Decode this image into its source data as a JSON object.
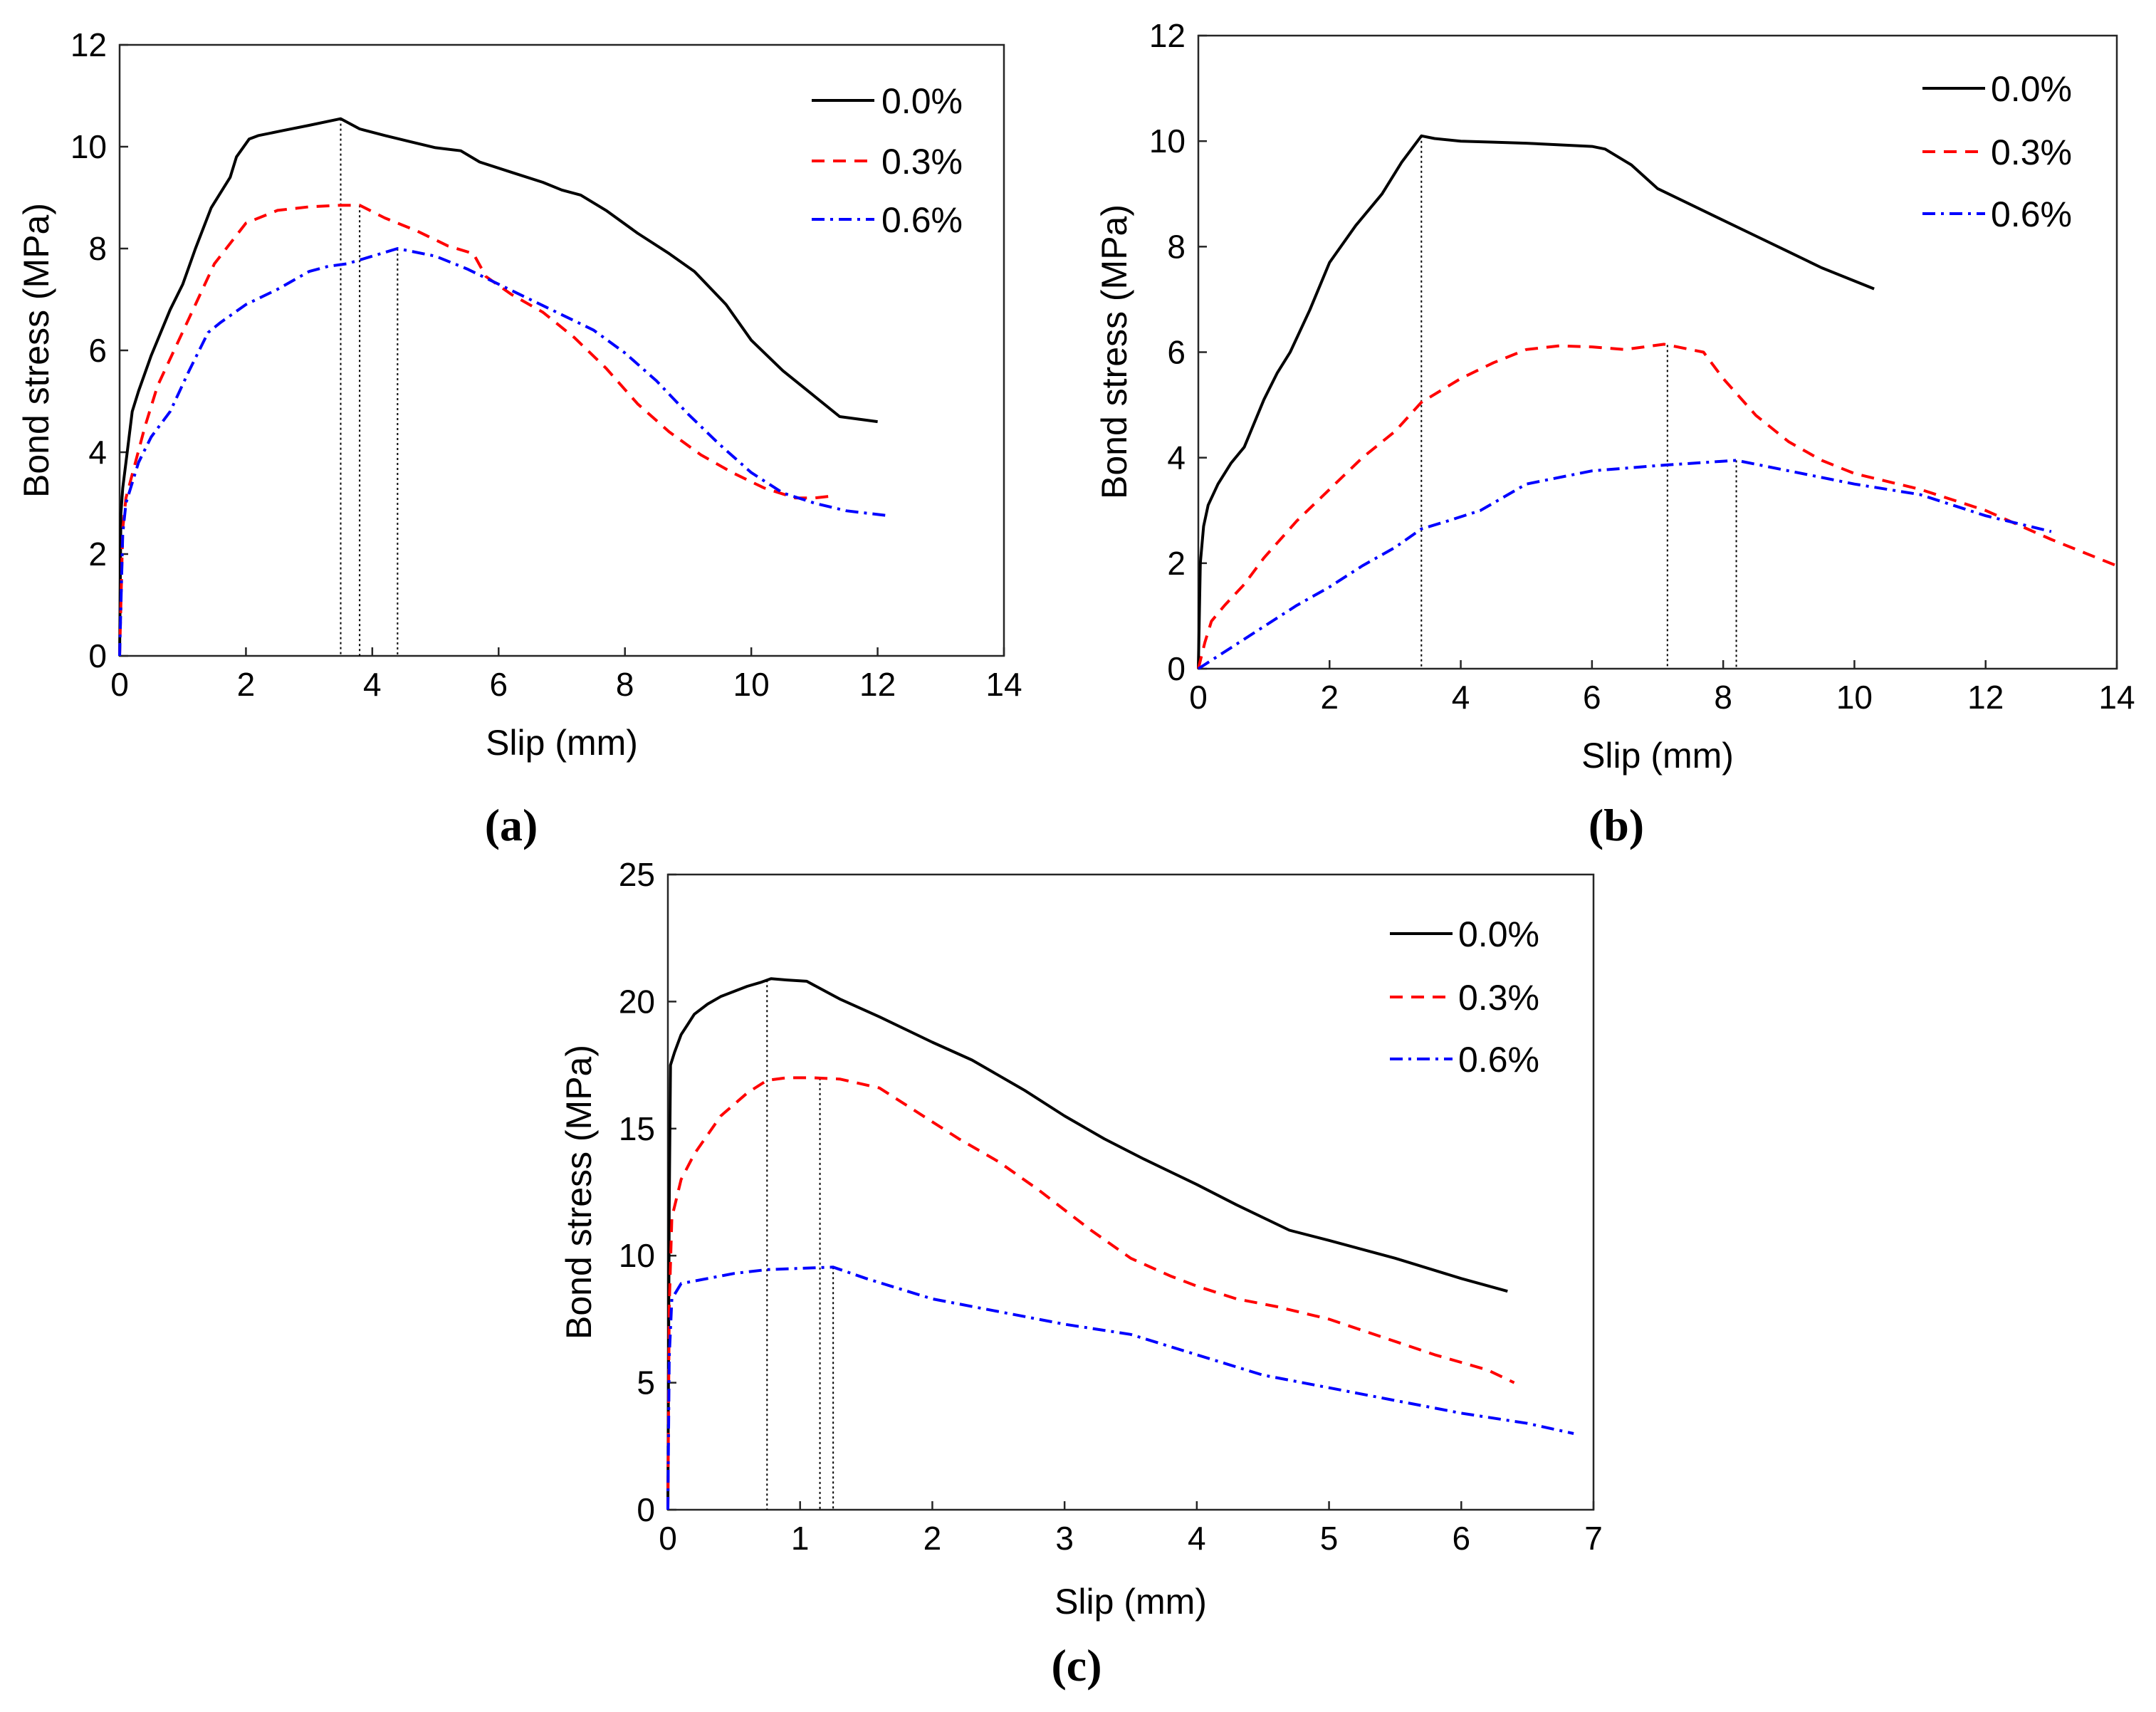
{
  "chart_data": [
    {
      "type": "line",
      "panel": "(a)",
      "xlabel": "Slip (mm)",
      "ylabel": "Bond stress (MPa)",
      "xlim": [
        0,
        14
      ],
      "ylim": [
        0,
        12
      ],
      "xticks": [
        0,
        2,
        4,
        6,
        8,
        10,
        12,
        14
      ],
      "yticks": [
        0,
        2,
        4,
        6,
        8,
        10,
        12
      ],
      "legend_position": "top-right",
      "series": [
        {
          "name": "0.0%",
          "color": "#000000",
          "dash": "solid",
          "x": [
            0,
            0.02,
            0.05,
            0.1,
            0.2,
            0.3,
            0.5,
            0.8,
            1.0,
            1.2,
            1.45,
            1.75,
            1.85,
            2.05,
            2.2,
            2.6,
            3.0,
            3.5,
            3.8,
            4.2,
            4.6,
            5.0,
            5.4,
            5.7,
            6.2,
            6.7,
            7.0,
            7.3,
            7.7,
            8.2,
            8.7,
            9.1,
            9.6,
            10.0,
            10.5,
            10.9,
            11.4,
            12.0
          ],
          "y": [
            0,
            2.8,
            3.3,
            3.8,
            4.8,
            5.2,
            5.9,
            6.8,
            7.3,
            8.0,
            8.8,
            9.4,
            9.8,
            10.15,
            10.22,
            10.32,
            10.42,
            10.55,
            10.35,
            10.22,
            10.1,
            9.98,
            9.92,
            9.7,
            9.5,
            9.3,
            9.15,
            9.05,
            8.75,
            8.3,
            7.9,
            7.55,
            6.9,
            6.2,
            5.6,
            5.2,
            4.7,
            4.6
          ]
        },
        {
          "name": "0.3%",
          "color": "#ff0000",
          "dash": "dashed",
          "x": [
            0,
            0.05,
            0.1,
            0.25,
            0.4,
            0.6,
            0.9,
            1.2,
            1.5,
            2.0,
            2.5,
            3.0,
            3.5,
            3.8,
            4.2,
            4.7,
            5.2,
            5.6,
            5.8,
            6.2,
            6.7,
            7.2,
            7.7,
            8.2,
            8.7,
            9.2,
            9.7,
            10.2,
            10.7,
            11.0,
            11.35
          ],
          "y": [
            0,
            2.5,
            3.1,
            3.8,
            4.5,
            5.3,
            6.1,
            6.9,
            7.7,
            8.5,
            8.75,
            8.82,
            8.85,
            8.85,
            8.6,
            8.35,
            8.05,
            7.9,
            7.45,
            7.1,
            6.75,
            6.25,
            5.65,
            4.95,
            4.4,
            3.95,
            3.6,
            3.3,
            3.1,
            3.1,
            3.15
          ]
        },
        {
          "name": "0.6%",
          "color": "#0000ff",
          "dash": "dashdot",
          "x": [
            0,
            0.05,
            0.1,
            0.3,
            0.5,
            0.8,
            1.1,
            1.4,
            1.6,
            2.0,
            2.5,
            3.0,
            3.3,
            3.6,
            4.0,
            4.4,
            5.0,
            5.5,
            6.0,
            6.5,
            7.0,
            7.5,
            8.0,
            8.5,
            9.0,
            9.5,
            10.0,
            10.5,
            11.0,
            11.5,
            12.2
          ],
          "y": [
            0,
            2.4,
            3.0,
            3.8,
            4.3,
            4.8,
            5.6,
            6.35,
            6.55,
            6.9,
            7.2,
            7.55,
            7.65,
            7.7,
            7.85,
            8.0,
            7.85,
            7.6,
            7.3,
            7.0,
            6.7,
            6.4,
            5.95,
            5.4,
            4.75,
            4.15,
            3.6,
            3.2,
            3.0,
            2.85,
            2.75
          ]
        }
      ],
      "peak_markers_x": [
        3.5,
        3.8,
        4.4
      ]
    },
    {
      "type": "line",
      "panel": "(b)",
      "xlabel": "Slip (mm)",
      "ylabel": "Bond stress (MPa)",
      "xlim": [
        0,
        14
      ],
      "ylim": [
        0,
        12
      ],
      "xticks": [
        0,
        2,
        4,
        6,
        8,
        10,
        12,
        14
      ],
      "yticks": [
        0,
        2,
        4,
        6,
        8,
        10,
        12
      ],
      "legend_position": "top-right",
      "series": [
        {
          "name": "0.0%",
          "color": "#000000",
          "dash": "solid",
          "x": [
            0,
            0.03,
            0.08,
            0.15,
            0.3,
            0.5,
            0.7,
            0.8,
            1.0,
            1.2,
            1.4,
            1.7,
            2.0,
            2.4,
            2.8,
            3.1,
            3.4,
            3.6,
            4.0,
            4.5,
            5.0,
            5.5,
            6.0,
            6.2,
            6.6,
            7.0,
            7.5,
            8.0,
            8.5,
            9.0,
            9.5,
            10.0,
            10.3
          ],
          "y": [
            0,
            2.0,
            2.7,
            3.1,
            3.5,
            3.9,
            4.2,
            4.5,
            5.1,
            5.6,
            6.0,
            6.8,
            7.7,
            8.4,
            9.0,
            9.6,
            10.1,
            10.05,
            10.0,
            9.98,
            9.96,
            9.93,
            9.9,
            9.85,
            9.55,
            9.1,
            8.8,
            8.5,
            8.2,
            7.9,
            7.6,
            7.35,
            7.2
          ]
        },
        {
          "name": "0.3%",
          "color": "#ff0000",
          "dash": "dashed",
          "x": [
            0,
            0.1,
            0.2,
            0.4,
            0.7,
            1.0,
            1.5,
            2.0,
            2.5,
            3.0,
            3.4,
            4.0,
            4.5,
            5.0,
            5.5,
            6.0,
            6.5,
            7.1,
            7.3,
            7.7,
            8.0,
            8.5,
            9.0,
            9.5,
            10.0,
            11.0,
            12.0,
            13.0,
            14.0
          ],
          "y": [
            0,
            0.5,
            0.9,
            1.2,
            1.6,
            2.1,
            2.8,
            3.4,
            4.0,
            4.5,
            5.05,
            5.5,
            5.8,
            6.05,
            6.12,
            6.1,
            6.05,
            6.15,
            6.1,
            6.0,
            5.5,
            4.8,
            4.3,
            3.95,
            3.7,
            3.4,
            3.0,
            2.45,
            1.95
          ]
        },
        {
          "name": "0.6%",
          "color": "#0000ff",
          "dash": "dashdot",
          "x": [
            0,
            0.5,
            1.0,
            1.5,
            2.0,
            2.5,
            3.0,
            3.4,
            3.8,
            4.3,
            5.0,
            6.0,
            7.0,
            8.2,
            9.0,
            10.0,
            11.0,
            12.0,
            13.0
          ],
          "y": [
            0,
            0.4,
            0.8,
            1.2,
            1.55,
            1.95,
            2.3,
            2.65,
            2.8,
            3.0,
            3.5,
            3.75,
            3.85,
            3.95,
            3.75,
            3.5,
            3.3,
            2.9,
            2.6
          ]
        }
      ],
      "peak_markers_x": [
        3.4,
        7.15,
        8.2
      ]
    },
    {
      "type": "line",
      "panel": "(c)",
      "xlabel": "Slip (mm)",
      "ylabel": "Bond stress (MPa)",
      "xlim": [
        0,
        7
      ],
      "ylim": [
        0,
        25
      ],
      "xticks": [
        0,
        1,
        2,
        3,
        4,
        5,
        6,
        7
      ],
      "yticks": [
        0,
        5,
        10,
        15,
        20,
        25
      ],
      "legend_position": "top-right",
      "series": [
        {
          "name": "0.0%",
          "color": "#000000",
          "dash": "solid",
          "x": [
            0,
            0.01,
            0.02,
            0.05,
            0.1,
            0.15,
            0.2,
            0.3,
            0.4,
            0.5,
            0.6,
            0.7,
            0.78,
            0.9,
            1.05,
            1.3,
            1.6,
            2.0,
            2.3,
            2.7,
            3.0,
            3.3,
            3.6,
            4.0,
            4.3,
            4.7,
            5.0,
            5.5,
            6.0,
            6.35
          ],
          "y": [
            0,
            12,
            17.5,
            18.0,
            18.7,
            19.1,
            19.5,
            19.9,
            20.2,
            20.4,
            20.6,
            20.75,
            20.9,
            20.85,
            20.8,
            20.1,
            19.4,
            18.4,
            17.7,
            16.5,
            15.5,
            14.6,
            13.8,
            12.8,
            12.0,
            11.0,
            10.6,
            9.9,
            9.1,
            8.6
          ]
        },
        {
          "name": "0.3%",
          "color": "#ff0000",
          "dash": "dashed",
          "x": [
            0,
            0.01,
            0.03,
            0.1,
            0.2,
            0.4,
            0.6,
            0.75,
            0.9,
            1.1,
            1.3,
            1.6,
            1.9,
            2.2,
            2.5,
            2.8,
            3.0,
            3.2,
            3.5,
            3.8,
            4.0,
            4.3,
            4.6,
            5.0,
            5.4,
            5.8,
            6.2,
            6.4
          ],
          "y": [
            0,
            8.0,
            11.5,
            13.0,
            14.0,
            15.5,
            16.4,
            16.9,
            17.0,
            17.0,
            16.95,
            16.6,
            15.6,
            14.6,
            13.7,
            12.6,
            11.8,
            11.0,
            9.9,
            9.2,
            8.8,
            8.3,
            8.0,
            7.5,
            6.8,
            6.1,
            5.5,
            5.0
          ]
        },
        {
          "name": "0.6%",
          "color": "#0000ff",
          "dash": "dashdot",
          "x": [
            0,
            0.01,
            0.03,
            0.1,
            0.3,
            0.5,
            0.75,
            1.0,
            1.25,
            1.5,
            2.0,
            2.5,
            3.0,
            3.5,
            4.0,
            4.5,
            5.0,
            5.5,
            6.0,
            6.5,
            6.85
          ],
          "y": [
            0,
            6.0,
            8.3,
            8.9,
            9.1,
            9.3,
            9.45,
            9.5,
            9.55,
            9.1,
            8.3,
            7.8,
            7.3,
            6.9,
            6.1,
            5.3,
            4.8,
            4.3,
            3.8,
            3.4,
            3.0
          ]
        }
      ],
      "peak_markers_x": [
        0.75,
        1.15,
        1.25
      ]
    }
  ]
}
